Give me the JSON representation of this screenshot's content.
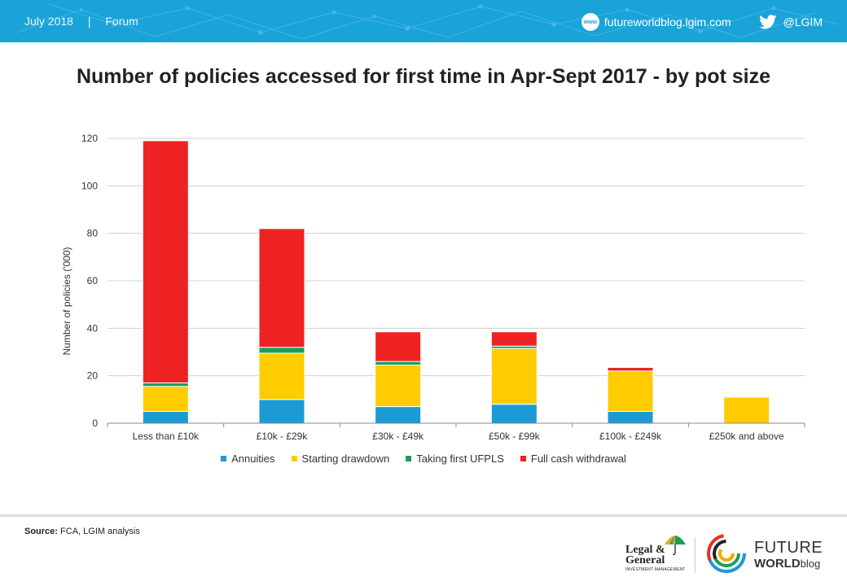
{
  "header": {
    "date": "July 2018",
    "separator": "|",
    "section": "Forum",
    "website": "futureworldblog.lgim.com",
    "www_icon_label": "www",
    "twitter": "@LGIM",
    "accent": "#1aa3d9"
  },
  "chart_data": {
    "type": "bar",
    "stacked": true,
    "title": "Number of policies accessed for first time in Apr-Sept 2017 - by pot size",
    "ylabel": "Number of policies ('000)",
    "xlabel": "",
    "ylim": [
      0,
      120
    ],
    "yticks": [
      0,
      20,
      40,
      60,
      80,
      100,
      120
    ],
    "grid": true,
    "legend_position": "bottom",
    "categories": [
      "Less than £10k",
      "£10k - £29k",
      "£30k - £49k",
      "£50k - £99k",
      "£100k - £249k",
      "£250k and above"
    ],
    "series": [
      {
        "name": "Annuities",
        "color": "#1b9ad6",
        "values": [
          5,
          10,
          7,
          8,
          5,
          0
        ]
      },
      {
        "name": "Starting drawdown",
        "color": "#ffcc00",
        "values": [
          10.5,
          19.5,
          17.5,
          23.5,
          17,
          11
        ]
      },
      {
        "name": "Taking first UFPLS",
        "color": "#1a9e5c",
        "values": [
          1.5,
          2.5,
          1.5,
          1,
          0,
          0
        ]
      },
      {
        "name": "Full cash withdrawal",
        "color": "#ee2222",
        "values": [
          102,
          50,
          12.5,
          6,
          1.5,
          0
        ]
      }
    ]
  },
  "footer": {
    "source_label": "Source:",
    "source_text": "FCA, LGIM analysis",
    "lg_line1": "Legal &",
    "lg_line2": "General",
    "lg_sub": "INVESTMENT MANAGEMENT",
    "fw_line1": "FUTURE",
    "fw_line2": "WORLD",
    "fw_line2b": "blog"
  }
}
